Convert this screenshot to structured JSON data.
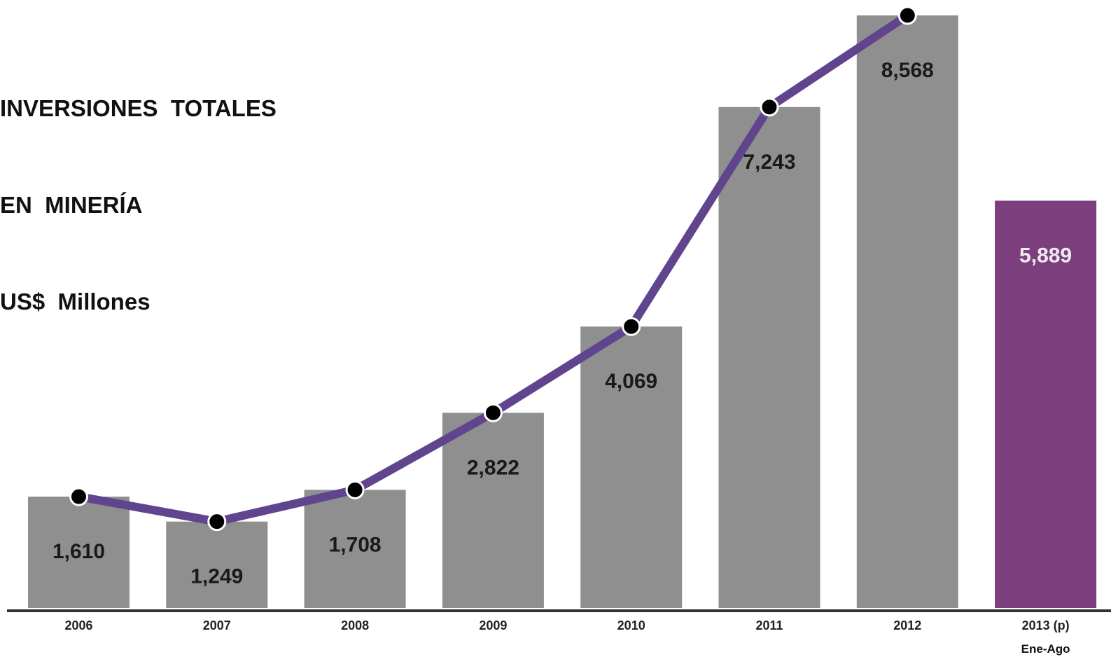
{
  "chart_data": {
    "type": "bar",
    "title_lines": [
      "INVERSIONES  TOTALES",
      "EN  MINERÍA",
      "US$  Millones"
    ],
    "categories": [
      "2006",
      "2007",
      "2008",
      "2009",
      "2010",
      "2011",
      "2012",
      "2013 (p)"
    ],
    "values": [
      1610,
      1249,
      1708,
      2822,
      4069,
      7243,
      8568,
      5889
    ],
    "value_labels": [
      "1,610",
      "1,249",
      "1,708",
      "2,822",
      "4,069",
      "7,243",
      "8,568",
      "5,889"
    ],
    "highlight_index": 7,
    "category_note": "Ene-Ago",
    "line_overlay": {
      "values": [
        1610,
        1249,
        1708,
        2822,
        4069,
        7243,
        8568
      ]
    },
    "ylim": [
      0,
      8568
    ],
    "grid": false,
    "colors": {
      "bar": "#8f8f8f",
      "highlight_bar": "#7c3e7d",
      "line": "#60458e",
      "marker": "#000000",
      "marker_edge": "#ffffff",
      "label_dark": "#1a1a1a",
      "label_light": "#f2eaf2",
      "axis": "#333333"
    }
  }
}
